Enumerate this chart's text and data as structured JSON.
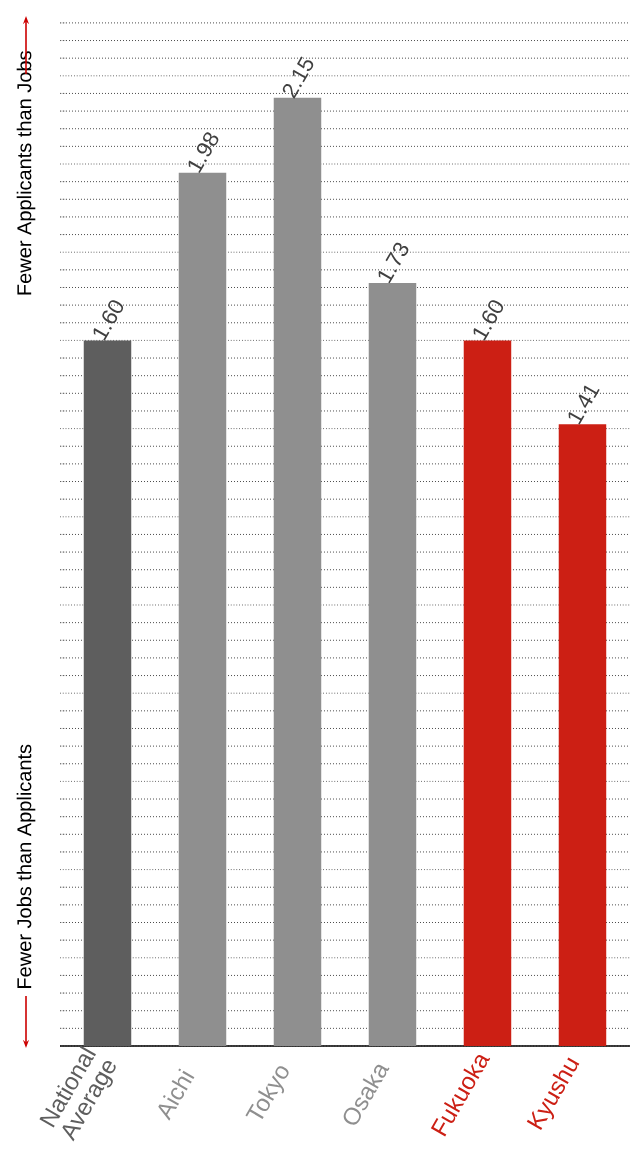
{
  "chart_data": {
    "type": "bar",
    "categories": [
      "National Average",
      "Aichi",
      "Tokyo",
      "Osaka",
      "Fukuoka",
      "Kyushu"
    ],
    "values": [
      1.6,
      1.98,
      2.15,
      1.73,
      1.6,
      1.41
    ],
    "value_labels": [
      "1.60",
      "1.98",
      "2.15",
      "1.73",
      "1.60",
      "1.41"
    ],
    "colors": [
      "#5e5e5e",
      "#8f8f8f",
      "#8f8f8f",
      "#8f8f8f",
      "#cc1f14",
      "#cc1f14"
    ],
    "grid": "y",
    "tick_labels": "x",
    "annotations": [
      "Fewer Applicants than Jobs",
      "Fewer Jobs than Applicants"
    ]
  }
}
